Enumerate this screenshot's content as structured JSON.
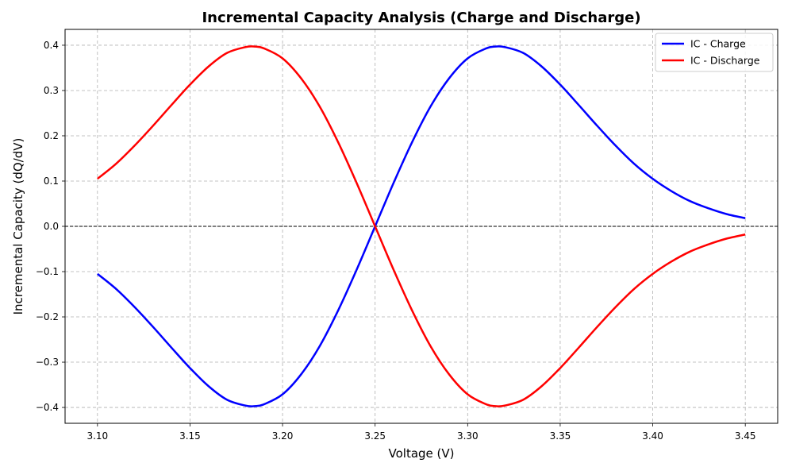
{
  "chart_data": {
    "type": "line",
    "title": "Incremental Capacity Analysis (Charge and Discharge)",
    "xlabel": "Voltage (V)",
    "ylabel": "Incremental Capacity (dQ/dV)",
    "xlim": [
      3.0825,
      3.4675
    ],
    "ylim": [
      -0.435,
      0.435
    ],
    "xticks": [
      3.1,
      3.15,
      3.2,
      3.25,
      3.3,
      3.35,
      3.4,
      3.45
    ],
    "xtick_labels": [
      "3.10",
      "3.15",
      "3.20",
      "3.25",
      "3.30",
      "3.35",
      "3.40",
      "3.45"
    ],
    "yticks": [
      -0.4,
      -0.3,
      -0.2,
      -0.1,
      0.0,
      0.1,
      0.2,
      0.3,
      0.4
    ],
    "ytick_labels": [
      "−0.4",
      "−0.3",
      "−0.2",
      "−0.1",
      "0.0",
      "0.1",
      "0.2",
      "0.3",
      "0.4"
    ],
    "grid": true,
    "hline": 0.0,
    "legend_position": "top-right",
    "series": [
      {
        "name": "IC - Charge",
        "color": "#0000ff",
        "x": [
          3.1,
          3.11,
          3.12,
          3.13,
          3.14,
          3.15,
          3.16,
          3.17,
          3.18,
          3.185,
          3.19,
          3.2,
          3.21,
          3.22,
          3.23,
          3.24,
          3.25,
          3.26,
          3.27,
          3.28,
          3.29,
          3.3,
          3.31,
          3.315,
          3.32,
          3.33,
          3.34,
          3.35,
          3.36,
          3.37,
          3.38,
          3.39,
          3.4,
          3.41,
          3.42,
          3.43,
          3.44,
          3.45
        ],
        "y": [
          -0.105,
          -0.138,
          -0.178,
          -0.222,
          -0.268,
          -0.313,
          -0.353,
          -0.383,
          -0.396,
          -0.397,
          -0.393,
          -0.371,
          -0.327,
          -0.265,
          -0.186,
          -0.096,
          0.0,
          0.096,
          0.186,
          0.265,
          0.327,
          0.371,
          0.393,
          0.397,
          0.396,
          0.383,
          0.353,
          0.313,
          0.268,
          0.222,
          0.178,
          0.138,
          0.105,
          0.078,
          0.056,
          0.04,
          0.027,
          0.018
        ]
      },
      {
        "name": "IC - Discharge",
        "color": "#ff0000",
        "x": [
          3.1,
          3.11,
          3.12,
          3.13,
          3.14,
          3.15,
          3.16,
          3.17,
          3.18,
          3.185,
          3.19,
          3.2,
          3.21,
          3.22,
          3.23,
          3.24,
          3.25,
          3.26,
          3.27,
          3.28,
          3.29,
          3.3,
          3.31,
          3.315,
          3.32,
          3.33,
          3.34,
          3.35,
          3.36,
          3.37,
          3.38,
          3.39,
          3.4,
          3.41,
          3.42,
          3.43,
          3.44,
          3.45
        ],
        "y": [
          0.105,
          0.138,
          0.178,
          0.222,
          0.268,
          0.313,
          0.353,
          0.383,
          0.396,
          0.397,
          0.393,
          0.371,
          0.327,
          0.265,
          0.186,
          0.096,
          0.0,
          -0.096,
          -0.186,
          -0.265,
          -0.327,
          -0.371,
          -0.393,
          -0.397,
          -0.396,
          -0.383,
          -0.353,
          -0.313,
          -0.268,
          -0.222,
          -0.178,
          -0.138,
          -0.105,
          -0.078,
          -0.056,
          -0.04,
          -0.027,
          -0.018
        ]
      }
    ]
  }
}
